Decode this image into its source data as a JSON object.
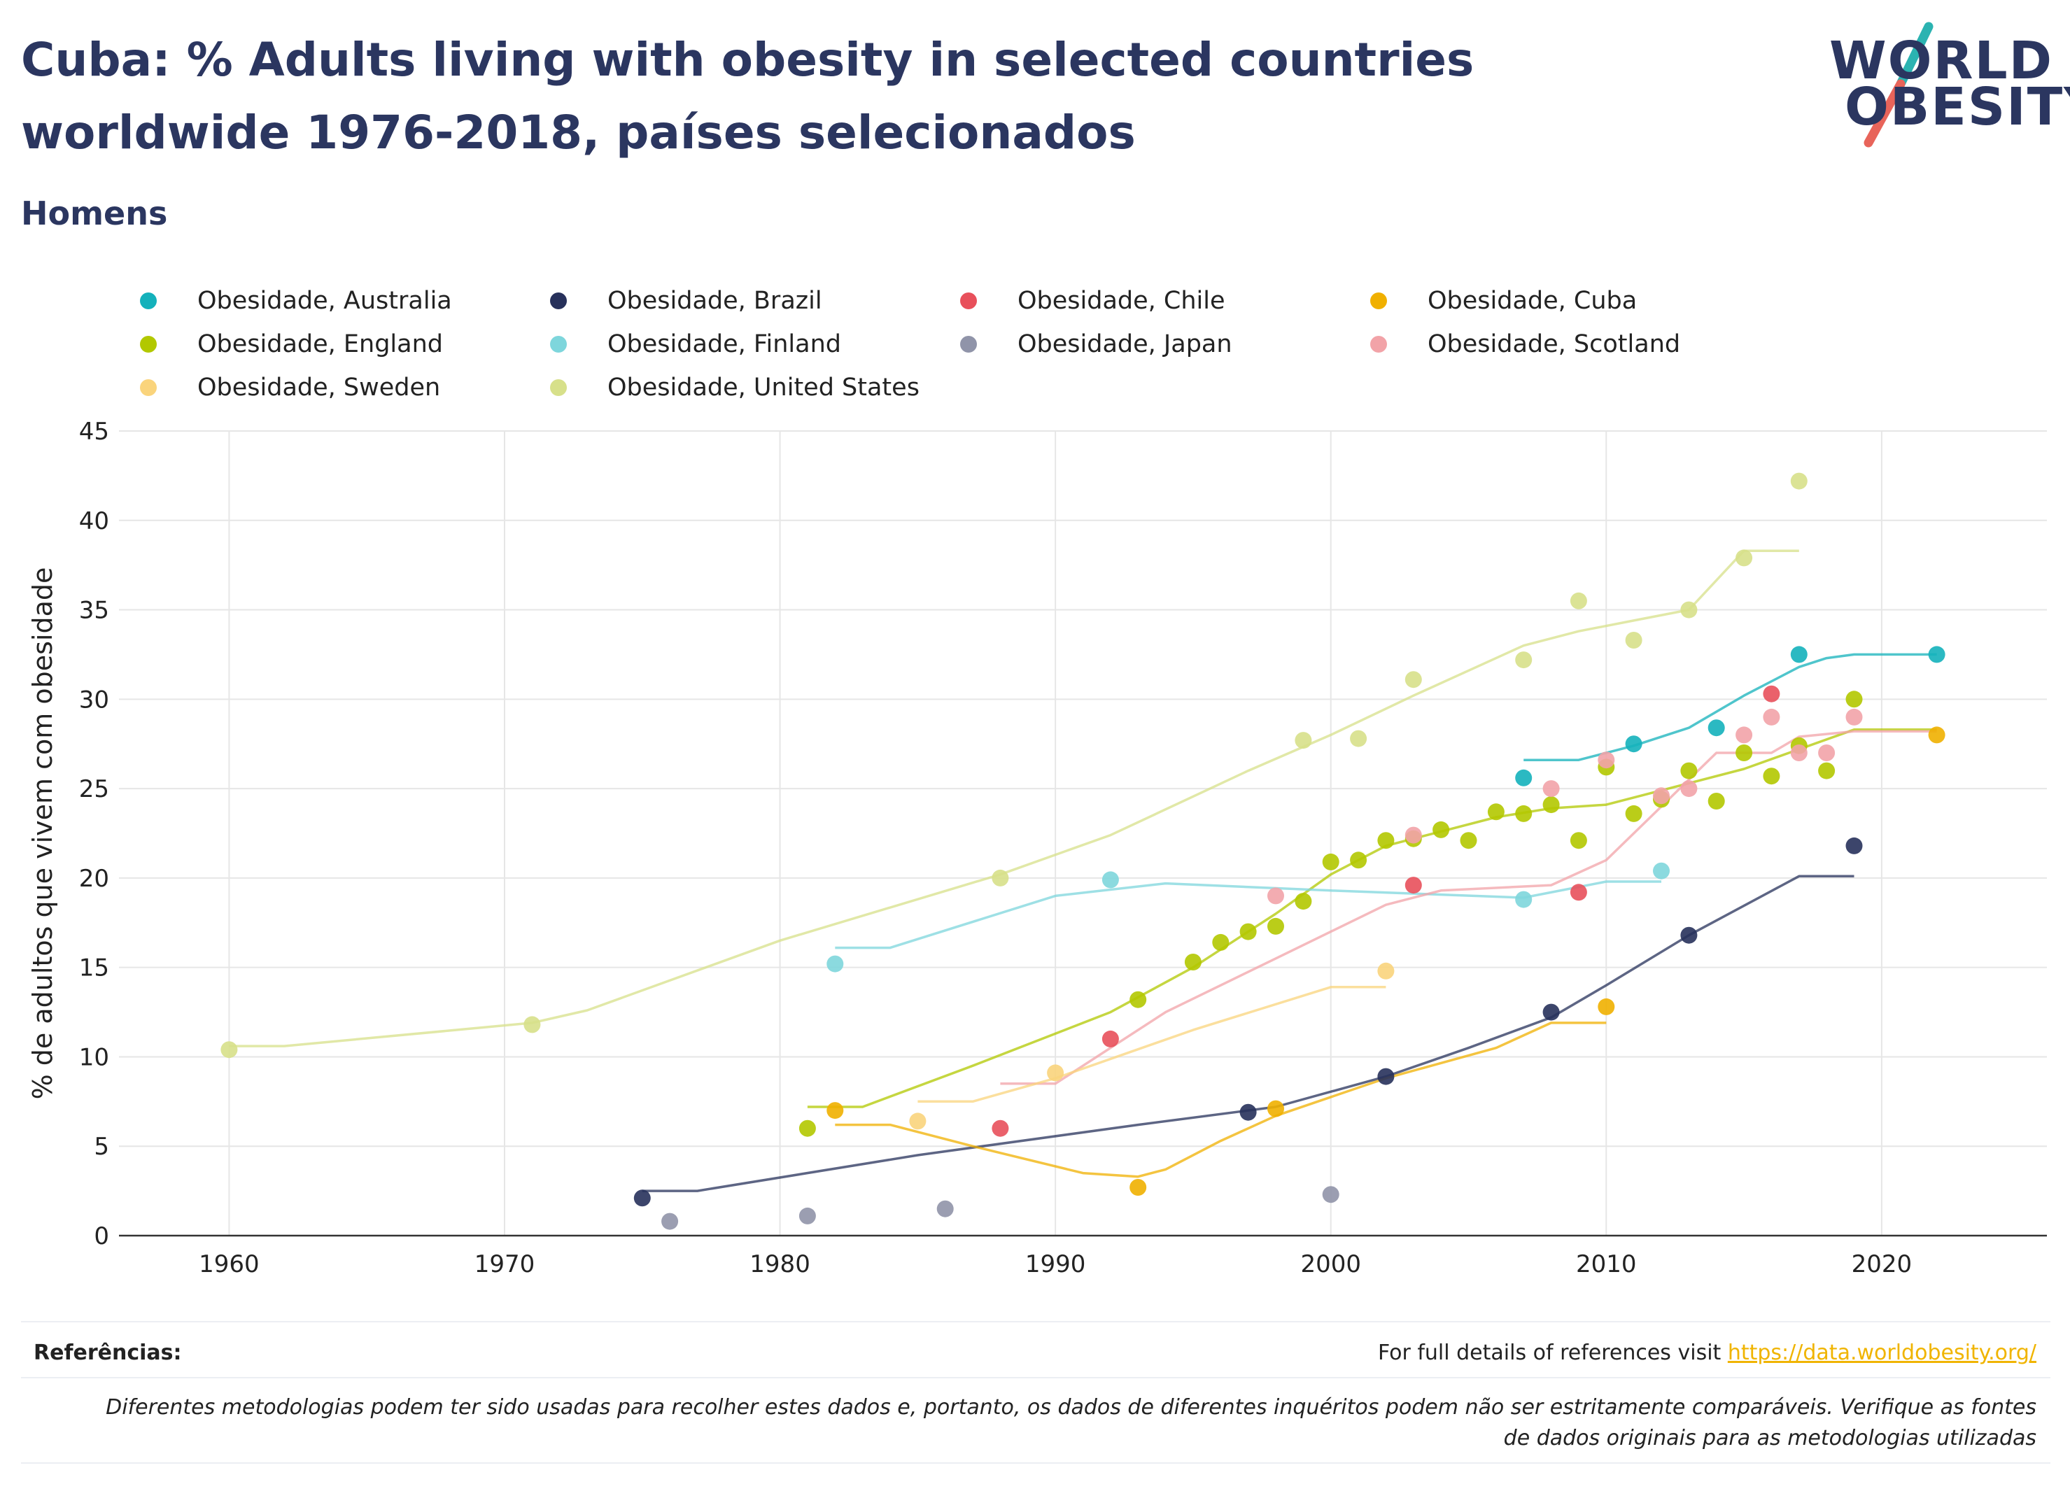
{
  "header": {
    "title": "Cuba: % Adults living with obesity in selected countries worldwide 1976-2018, países selecionados",
    "subtitle": "Homens"
  },
  "logo": {
    "line1": "WORLD",
    "line2": "OBESITY",
    "colors": {
      "text": "#2b3660",
      "slash_top": "#2bb3b1",
      "slash_bottom": "#e8645a"
    }
  },
  "chart_data": {
    "type": "scatter",
    "ylabel": "% de adultos que vivem com obesidade",
    "xlim": [
      1956,
      2026
    ],
    "ylim": [
      0,
      45
    ],
    "x_ticks": [
      1960,
      1970,
      1980,
      1990,
      2000,
      2010,
      2020
    ],
    "y_ticks": [
      0,
      5,
      10,
      15,
      20,
      25,
      30,
      35,
      40,
      45
    ],
    "grid": true,
    "legend_position": "top",
    "series": [
      {
        "name": "Obesidade, Australia",
        "color": "#14b1bb",
        "points": [
          [
            2007,
            25.6
          ],
          [
            2011,
            27.5
          ],
          [
            2014,
            28.4
          ],
          [
            2017,
            32.5
          ],
          [
            2022,
            32.5
          ]
        ],
        "trend": [
          [
            2007,
            26.6
          ],
          [
            2009,
            26.6
          ],
          [
            2011,
            27.4
          ],
          [
            2013,
            28.4
          ],
          [
            2015,
            30.2
          ],
          [
            2017,
            31.8
          ],
          [
            2018,
            32.3
          ],
          [
            2019,
            32.5
          ],
          [
            2022,
            32.5
          ]
        ]
      },
      {
        "name": "Obesidade, Brazil",
        "color": "#27315b",
        "points": [
          [
            1975,
            2.1
          ],
          [
            1997,
            6.9
          ],
          [
            2002,
            8.9
          ],
          [
            2008,
            12.5
          ],
          [
            2013,
            16.8
          ],
          [
            2019,
            21.8
          ]
        ],
        "trend": [
          [
            1975,
            2.5
          ],
          [
            1977,
            2.5
          ],
          [
            1985,
            4.5
          ],
          [
            1993,
            6.2
          ],
          [
            1998,
            7.2
          ],
          [
            2002,
            8.9
          ],
          [
            2005,
            10.5
          ],
          [
            2008,
            12.2
          ],
          [
            2010,
            14.0
          ],
          [
            2013,
            16.8
          ],
          [
            2017,
            20.1
          ],
          [
            2019,
            20.1
          ]
        ]
      },
      {
        "name": "Obesidade, Chile",
        "color": "#e8505b",
        "points": [
          [
            1988,
            6.0
          ],
          [
            1992,
            11.0
          ],
          [
            2003,
            19.6
          ],
          [
            2009,
            19.2
          ],
          [
            2016,
            30.3
          ]
        ]
      },
      {
        "name": "Obesidade, Cuba",
        "color": "#f0b000",
        "points": [
          [
            1982,
            7.0
          ],
          [
            1993,
            2.7
          ],
          [
            1998,
            7.1
          ],
          [
            2010,
            12.8
          ],
          [
            2022,
            28.0
          ]
        ],
        "trend": [
          [
            1982,
            6.2
          ],
          [
            1984,
            6.2
          ],
          [
            1987,
            5.0
          ],
          [
            1991,
            3.5
          ],
          [
            1993,
            3.3
          ],
          [
            1994,
            3.7
          ],
          [
            1996,
            5.3
          ],
          [
            1998,
            6.7
          ],
          [
            2002,
            8.8
          ],
          [
            2006,
            10.5
          ],
          [
            2008,
            11.9
          ],
          [
            2010,
            11.9
          ]
        ]
      },
      {
        "name": "Obesidade, England",
        "color": "#b2c800",
        "points": [
          [
            1981,
            6.0
          ],
          [
            1993,
            13.2
          ],
          [
            1995,
            15.3
          ],
          [
            1996,
            16.4
          ],
          [
            1997,
            17.0
          ],
          [
            1998,
            17.3
          ],
          [
            1999,
            18.7
          ],
          [
            2000,
            20.9
          ],
          [
            2001,
            21.0
          ],
          [
            2002,
            22.1
          ],
          [
            2003,
            22.2
          ],
          [
            2004,
            22.7
          ],
          [
            2005,
            22.1
          ],
          [
            2006,
            23.7
          ],
          [
            2007,
            23.6
          ],
          [
            2008,
            24.1
          ],
          [
            2009,
            22.1
          ],
          [
            2010,
            26.2
          ],
          [
            2011,
            23.6
          ],
          [
            2012,
            24.4
          ],
          [
            2013,
            26.0
          ],
          [
            2014,
            24.3
          ],
          [
            2015,
            27.0
          ],
          [
            2016,
            25.7
          ],
          [
            2017,
            27.4
          ],
          [
            2018,
            26.0
          ],
          [
            2019,
            30.0
          ]
        ],
        "trend": [
          [
            1981,
            7.2
          ],
          [
            1983,
            7.2
          ],
          [
            1987,
            9.5
          ],
          [
            1992,
            12.5
          ],
          [
            1995,
            15.0
          ],
          [
            1998,
            18.0
          ],
          [
            2000,
            20.2
          ],
          [
            2002,
            21.8
          ],
          [
            2004,
            22.6
          ],
          [
            2006,
            23.4
          ],
          [
            2008,
            23.9
          ],
          [
            2010,
            24.1
          ],
          [
            2013,
            25.3
          ],
          [
            2015,
            26.1
          ],
          [
            2017,
            27.2
          ],
          [
            2019,
            28.3
          ],
          [
            2022,
            28.3
          ]
        ]
      },
      {
        "name": "Obesidade, Finland",
        "color": "#7ed6dc",
        "points": [
          [
            1982,
            15.2
          ],
          [
            1992,
            19.9
          ],
          [
            2007,
            18.8
          ],
          [
            2012,
            20.4
          ]
        ],
        "trend": [
          [
            1982,
            16.1
          ],
          [
            1984,
            16.1
          ],
          [
            1990,
            19.0
          ],
          [
            1994,
            19.7
          ],
          [
            2000,
            19.3
          ],
          [
            2007,
            18.9
          ],
          [
            2010,
            19.8
          ],
          [
            2012,
            19.8
          ]
        ]
      },
      {
        "name": "Obesidade, Japan",
        "color": "#9094a9",
        "points": [
          [
            1976,
            0.8
          ],
          [
            1981,
            1.1
          ],
          [
            1986,
            1.5
          ],
          [
            2000,
            2.3
          ]
        ]
      },
      {
        "name": "Obesidade, Scotland",
        "color": "#f2a3a8",
        "points": [
          [
            1998,
            19.0
          ],
          [
            2003,
            22.4
          ],
          [
            2008,
            25.0
          ],
          [
            2010,
            26.6
          ],
          [
            2012,
            24.6
          ],
          [
            2013,
            25.0
          ],
          [
            2015,
            28.0
          ],
          [
            2016,
            29.0
          ],
          [
            2017,
            27.0
          ],
          [
            2018,
            27.0
          ],
          [
            2019,
            29.0
          ]
        ],
        "trend": [
          [
            1988,
            8.5
          ],
          [
            1990,
            8.5
          ],
          [
            1994,
            12.5
          ],
          [
            1998,
            15.5
          ],
          [
            2002,
            18.5
          ],
          [
            2004,
            19.3
          ],
          [
            2008,
            19.6
          ],
          [
            2010,
            21.0
          ],
          [
            2012,
            24.0
          ],
          [
            2014,
            27.0
          ],
          [
            2016,
            27.0
          ],
          [
            2017,
            27.9
          ],
          [
            2019,
            28.2
          ],
          [
            2022,
            28.2
          ]
        ]
      },
      {
        "name": "Obesidade, Sweden",
        "color": "#fad47c",
        "points": [
          [
            1985,
            6.4
          ],
          [
            1990,
            9.1
          ],
          [
            2002,
            14.8
          ]
        ],
        "trend": [
          [
            1985,
            7.5
          ],
          [
            1987,
            7.5
          ],
          [
            1990,
            8.8
          ],
          [
            1995,
            11.5
          ],
          [
            2000,
            13.9
          ],
          [
            2002,
            13.9
          ]
        ]
      },
      {
        "name": "Obesidade, United States",
        "color": "#d7e08a",
        "points": [
          [
            1960,
            10.4
          ],
          [
            1971,
            11.8
          ],
          [
            1988,
            20.0
          ],
          [
            1999,
            27.7
          ],
          [
            2001,
            27.8
          ],
          [
            2003,
            31.1
          ],
          [
            2007,
            32.2
          ],
          [
            2009,
            35.5
          ],
          [
            2011,
            33.3
          ],
          [
            2013,
            35.0
          ],
          [
            2015,
            37.9
          ],
          [
            2017,
            42.2
          ]
        ],
        "trend": [
          [
            1960,
            10.6
          ],
          [
            1962,
            10.6
          ],
          [
            1971,
            11.9
          ],
          [
            1973,
            12.6
          ],
          [
            1980,
            16.5
          ],
          [
            1988,
            20.2
          ],
          [
            1992,
            22.4
          ],
          [
            1997,
            26.0
          ],
          [
            2000,
            28.0
          ],
          [
            2003,
            30.2
          ],
          [
            2007,
            33.0
          ],
          [
            2009,
            33.8
          ],
          [
            2011,
            34.4
          ],
          [
            2013,
            35.0
          ],
          [
            2015,
            38.3
          ],
          [
            2017,
            38.3
          ]
        ]
      }
    ],
    "colors": {
      "axis": "#222222",
      "grid": "#e6e6e6",
      "tick_label": "#222222"
    }
  },
  "footer": {
    "references_label": "Referências:",
    "references_text": "For full details of references visit",
    "references_link": "https://data.worldobesity.org/",
    "note_line1": "Diferentes metodologias podem ter sido usadas para recolher estes dados e, portanto, os dados de diferentes inquéritos podem não ser estritamente comparáveis. Verifique as fontes",
    "note_line2": "de dados originais para as metodologias utilizadas"
  }
}
